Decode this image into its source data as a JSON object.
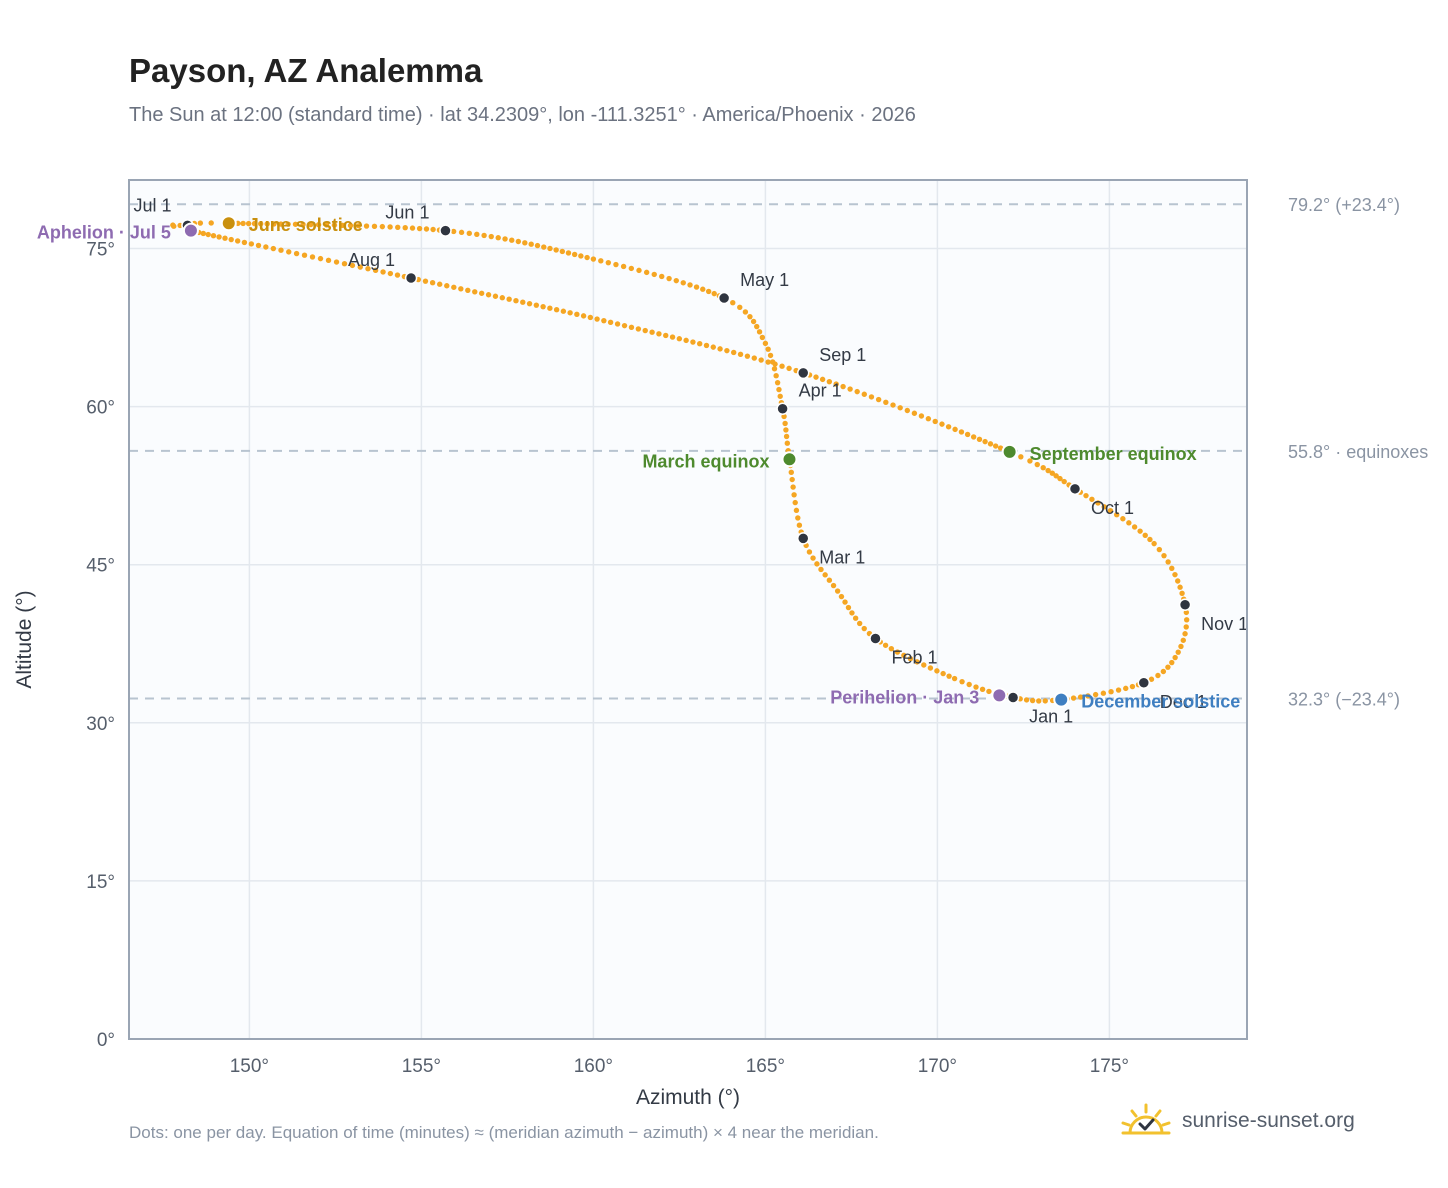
{
  "header": {
    "title": "Payson, AZ Analemma",
    "subtitle": "The Sun at 12:00 (standard time) · lat 34.2309°, lon -111.3251° · America/Phoenix · 2026"
  },
  "footer": {
    "note": "Dots: one per day. Equation of time (minutes) ≈ (meridian azimuth − azimuth) × 4 near the meridian.",
    "brand": "sunrise-sunset.org",
    "brand_icon": "sun-check-icon"
  },
  "chart_data": {
    "type": "scatter",
    "xlabel": "Azimuth (°)",
    "ylabel": "Altitude (°)",
    "xlim": [
      146.5,
      179
    ],
    "ylim": [
      0,
      81.5
    ],
    "xticks": [
      150,
      155,
      160,
      165,
      170,
      175
    ],
    "yticks": [
      0,
      15,
      30,
      45,
      60,
      75
    ],
    "tick_suffix": "°",
    "grid": true,
    "colors": {
      "curve": "#f5a623",
      "month_marker": "#2f3540",
      "equinox": "#4e8a2e",
      "june_solstice": "#c9900e",
      "december_solstice": "#3f7fc1",
      "apsis": "#8e6bb1",
      "reference_line": "#b8c4d0",
      "plot_background": "#fafcfe",
      "frame": "#9aa5b4"
    },
    "path_keypoints": [
      {
        "date": "Jan 1",
        "x": 172.2,
        "y": 32.4
      },
      {
        "date": "Jan 15",
        "x": 170.5,
        "y": 34.2
      },
      {
        "date": "Feb 1",
        "x": 168.2,
        "y": 38.0
      },
      {
        "date": "Feb 15",
        "x": 167.1,
        "y": 42.5
      },
      {
        "date": "Mar 1",
        "x": 166.1,
        "y": 47.5
      },
      {
        "date": "Mar 20",
        "x": 165.7,
        "y": 55.0
      },
      {
        "date": "Apr 1",
        "x": 165.5,
        "y": 59.8
      },
      {
        "date": "Apr 15",
        "x": 165.0,
        "y": 66.0
      },
      {
        "date": "May 1",
        "x": 163.8,
        "y": 70.3
      },
      {
        "date": "May 15",
        "x": 160.0,
        "y": 74.0
      },
      {
        "date": "Jun 1",
        "x": 155.7,
        "y": 76.7
      },
      {
        "date": "Jun 21",
        "x": 149.4,
        "y": 77.4
      },
      {
        "date": "Jul 1",
        "x": 148.2,
        "y": 77.2
      },
      {
        "date": "Jul 5",
        "x": 148.3,
        "y": 76.7
      },
      {
        "date": "Aug 1",
        "x": 154.7,
        "y": 72.2
      },
      {
        "date": "Aug 15",
        "x": 160.5,
        "y": 68.0
      },
      {
        "date": "Sep 1",
        "x": 166.1,
        "y": 63.2
      },
      {
        "date": "Sep 22",
        "x": 172.1,
        "y": 55.7
      },
      {
        "date": "Oct 1",
        "x": 174.0,
        "y": 52.2
      },
      {
        "date": "Oct 15",
        "x": 176.3,
        "y": 47.0
      },
      {
        "date": "Nov 1",
        "x": 177.2,
        "y": 41.2
      },
      {
        "date": "Nov 15",
        "x": 177.0,
        "y": 36.7
      },
      {
        "date": "Dec 1",
        "x": 176.0,
        "y": 33.8
      },
      {
        "date": "Dec 21",
        "x": 173.6,
        "y": 32.2
      }
    ],
    "month_markers": [
      {
        "label": "Jan 1",
        "x": 172.2,
        "y": 32.4
      },
      {
        "label": "Feb 1",
        "x": 168.2,
        "y": 38.0
      },
      {
        "label": "Mar 1",
        "x": 166.1,
        "y": 47.5
      },
      {
        "label": "Apr 1",
        "x": 165.5,
        "y": 59.8
      },
      {
        "label": "May 1",
        "x": 163.8,
        "y": 70.3
      },
      {
        "label": "Jun 1",
        "x": 155.7,
        "y": 76.7
      },
      {
        "label": "Jul 1",
        "x": 148.2,
        "y": 77.2
      },
      {
        "label": "Aug 1",
        "x": 154.7,
        "y": 72.2
      },
      {
        "label": "Sep 1",
        "x": 166.1,
        "y": 63.2
      },
      {
        "label": "Oct 1",
        "x": 174.0,
        "y": 52.2
      },
      {
        "label": "Nov 1",
        "x": 177.2,
        "y": 41.2
      },
      {
        "label": "Dec 1",
        "x": 176.0,
        "y": 33.8
      }
    ],
    "events": [
      {
        "label": "March equinox",
        "x": 165.7,
        "y": 55.0,
        "color": "#4e8a2e"
      },
      {
        "label": "September equinox",
        "x": 172.1,
        "y": 55.7,
        "color": "#4e8a2e"
      },
      {
        "label": "June solstice",
        "x": 149.4,
        "y": 77.4,
        "color": "#c9900e"
      },
      {
        "label": "December solstice",
        "x": 173.6,
        "y": 32.2,
        "color": "#3f7fc1"
      },
      {
        "label": "Aphelion · Jul 5",
        "x": 148.3,
        "y": 76.7,
        "color": "#8e6bb1"
      },
      {
        "label": "Perihelion · Jan 3",
        "x": 171.8,
        "y": 32.6,
        "color": "#8e6bb1"
      }
    ],
    "reference_lines": [
      {
        "y": 79.2,
        "label": "79.2° (+23.4°)"
      },
      {
        "y": 55.8,
        "label": "55.8° · equinoxes"
      },
      {
        "y": 32.3,
        "label": "32.3° (−23.4°)"
      }
    ]
  }
}
